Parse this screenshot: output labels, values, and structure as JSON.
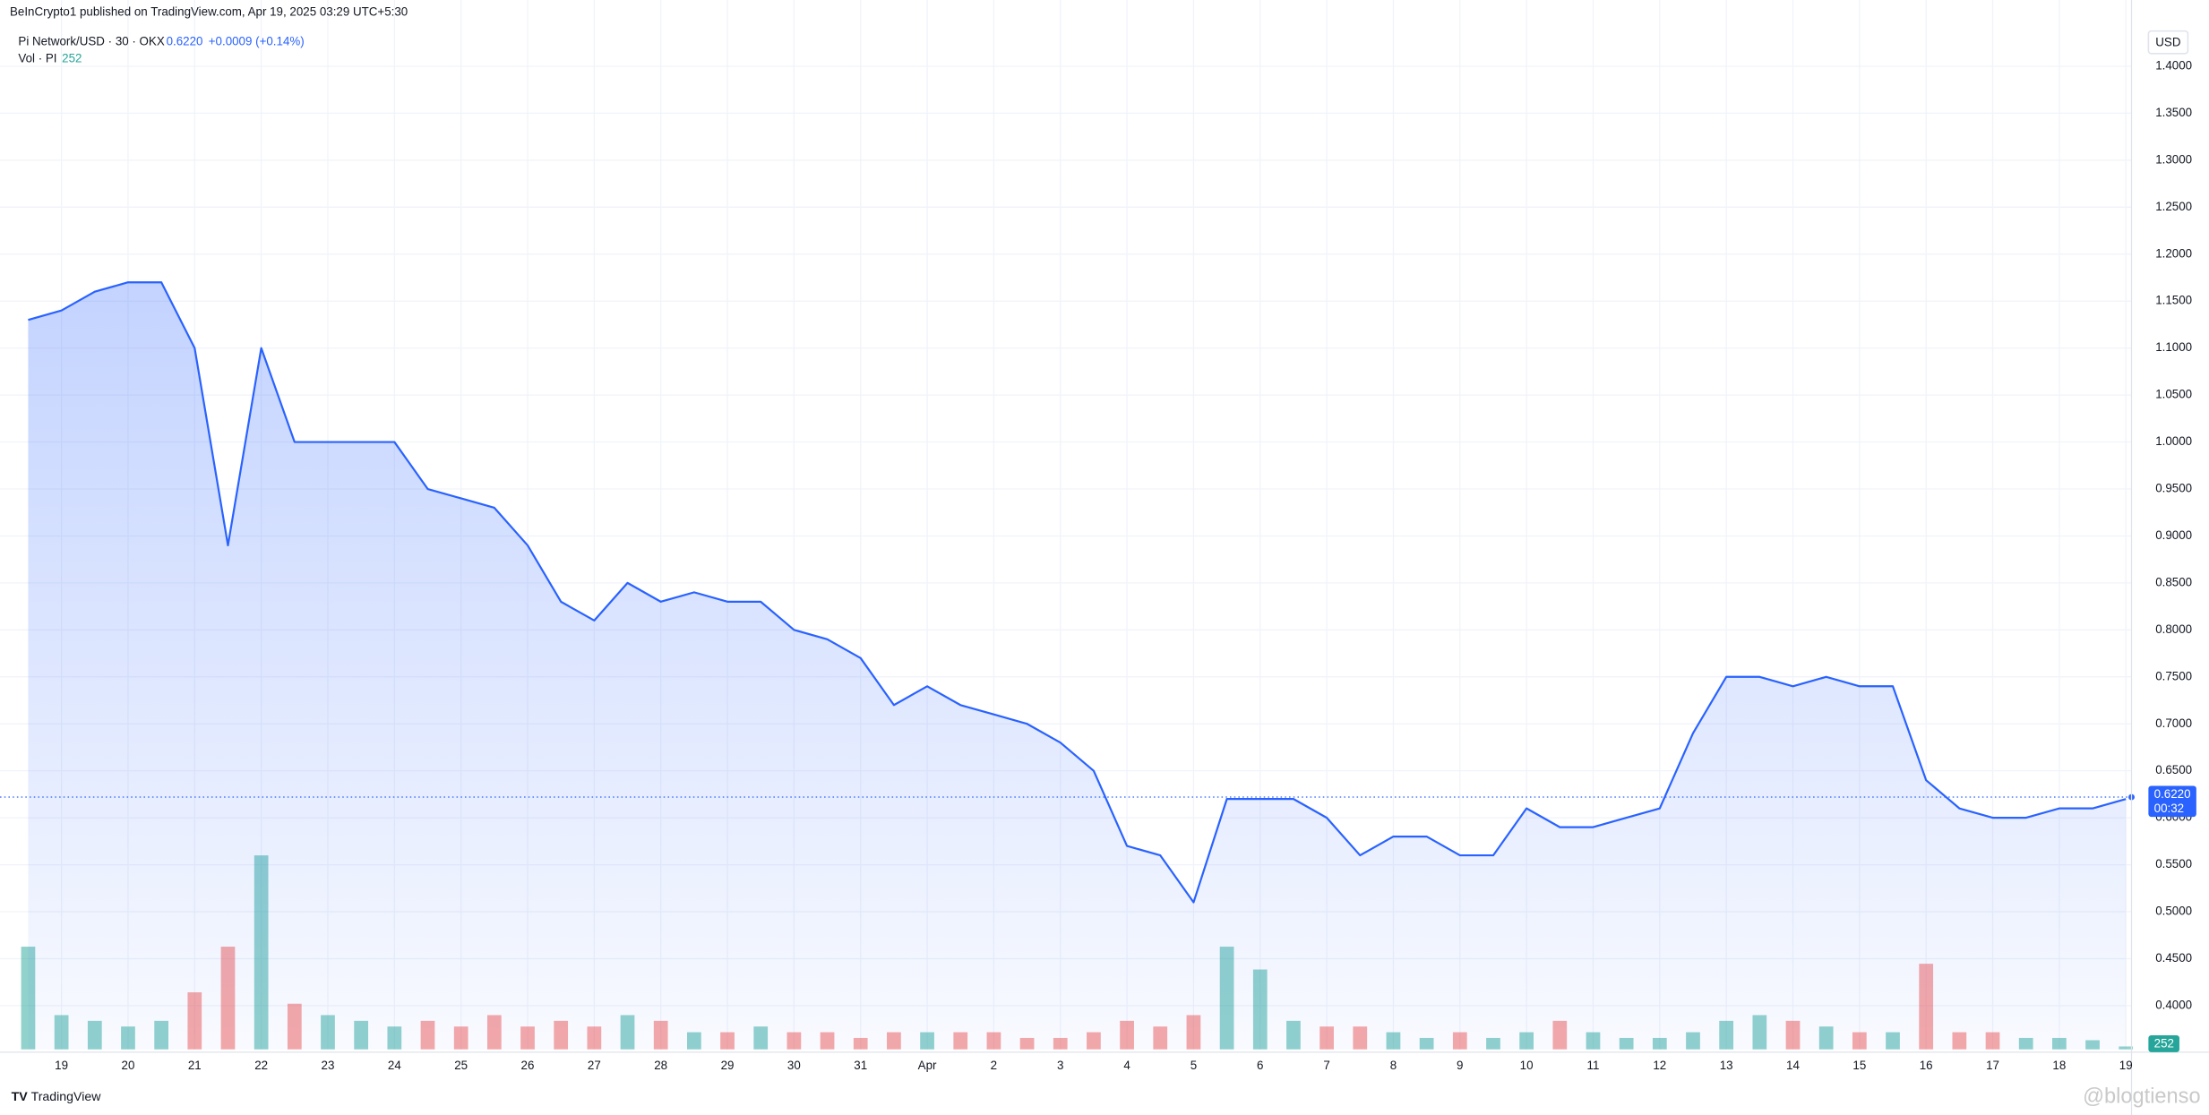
{
  "header": {
    "published": "BeInCrypto1 published on TradingView.com, Apr 19, 2025 03:29 UTC+5:30",
    "symbol": "Pi Network/USD · 30 · OKX",
    "change": "+0.0009 (+0.14%)",
    "vol_label": "Vol · PI",
    "currency": "USD"
  },
  "footer": {
    "brand": "TradingView",
    "watermark": "@blogtienso"
  },
  "chart_data": {
    "type": "line",
    "color": "#2962ff",
    "grid": true,
    "categories": [
      null,
      "19",
      null,
      "20",
      null,
      "21",
      null,
      "22",
      null,
      "23",
      null,
      "24",
      null,
      "25",
      null,
      "26",
      null,
      "27",
      null,
      "28",
      null,
      "29",
      null,
      "30",
      null,
      "31",
      null,
      "Apr",
      null,
      "2",
      null,
      "3",
      null,
      "4",
      null,
      "5",
      null,
      "6",
      null,
      "7",
      null,
      "8",
      null,
      "9",
      null,
      "10",
      null,
      "11",
      null,
      "12",
      null,
      "13",
      null,
      "14",
      null,
      "15",
      null,
      "16",
      null,
      "17",
      null,
      "18",
      null,
      "19"
    ],
    "values": [
      1.13,
      1.14,
      1.16,
      1.17,
      1.17,
      1.1,
      0.89,
      1.1,
      1.0,
      1.0,
      1.0,
      1.0,
      0.95,
      0.94,
      0.93,
      0.89,
      0.83,
      0.81,
      0.85,
      0.83,
      0.84,
      0.83,
      0.83,
      0.8,
      0.79,
      0.77,
      0.72,
      0.74,
      0.72,
      0.71,
      0.7,
      0.68,
      0.65,
      0.57,
      0.56,
      0.51,
      0.62,
      0.62,
      0.62,
      0.6,
      0.56,
      0.58,
      0.58,
      0.56,
      0.56,
      0.61,
      0.59,
      0.59,
      0.6,
      0.61,
      0.69,
      0.75,
      0.75,
      0.74,
      0.75,
      0.74,
      0.74,
      0.64,
      0.61,
      0.6,
      0.6,
      0.61,
      0.61,
      0.62
    ],
    "ylim": [
      0.3535,
      1.4705
    ],
    "yticks": [
      {
        "value": 0.4,
        "label": "0.4000"
      },
      {
        "value": 0.45,
        "label": "0.4500"
      },
      {
        "value": 0.5,
        "label": "0.5000"
      },
      {
        "value": 0.55,
        "label": "0.5500"
      },
      {
        "value": 0.6,
        "label": "0.6000"
      },
      {
        "value": 0.65,
        "label": "0.6500"
      },
      {
        "value": 0.7,
        "label": "0.7000"
      },
      {
        "value": 0.75,
        "label": "0.7500"
      },
      {
        "value": 0.8,
        "label": "0.8000"
      },
      {
        "value": 0.85,
        "label": "0.8500"
      },
      {
        "value": 0.9,
        "label": "0.9000"
      },
      {
        "value": 0.95,
        "label": "0.9500"
      },
      {
        "value": 1.0,
        "label": "1.0000"
      },
      {
        "value": 1.05,
        "label": "1.0500"
      },
      {
        "value": 1.1,
        "label": "1.1000"
      },
      {
        "value": 1.15,
        "label": "1.1500"
      },
      {
        "value": 1.2,
        "label": "1.2000"
      },
      {
        "value": 1.25,
        "label": "1.2500"
      },
      {
        "value": 1.3,
        "label": "1.3000"
      },
      {
        "value": 1.35,
        "label": "1.3500"
      },
      {
        "value": 1.4,
        "label": "1.4000"
      }
    ],
    "last_price": {
      "value": 0.622,
      "label": "0.6220"
    },
    "countdown": "00:32",
    "volume": {
      "up_color": "#26a69a",
      "down_color": "#ef5350",
      "ylim": [
        0,
        30000
      ],
      "values": [
        9000,
        3000,
        2500,
        2000,
        2500,
        5000,
        9000,
        17000,
        4000,
        3000,
        2500,
        2000,
        2500,
        2000,
        3000,
        2000,
        2500,
        2000,
        3000,
        2500,
        1500,
        1500,
        2000,
        1500,
        1500,
        1000,
        1500,
        1500,
        1500,
        1500,
        1000,
        1000,
        1500,
        2500,
        2000,
        3000,
        9000,
        7000,
        2500,
        2000,
        2000,
        1500,
        1000,
        1500,
        1000,
        1500,
        2500,
        1500,
        1000,
        1000,
        1500,
        2500,
        3000,
        2500,
        2000,
        1500,
        1500,
        7500,
        1500,
        1500,
        1000,
        1000,
        800,
        252
      ]
    }
  }
}
